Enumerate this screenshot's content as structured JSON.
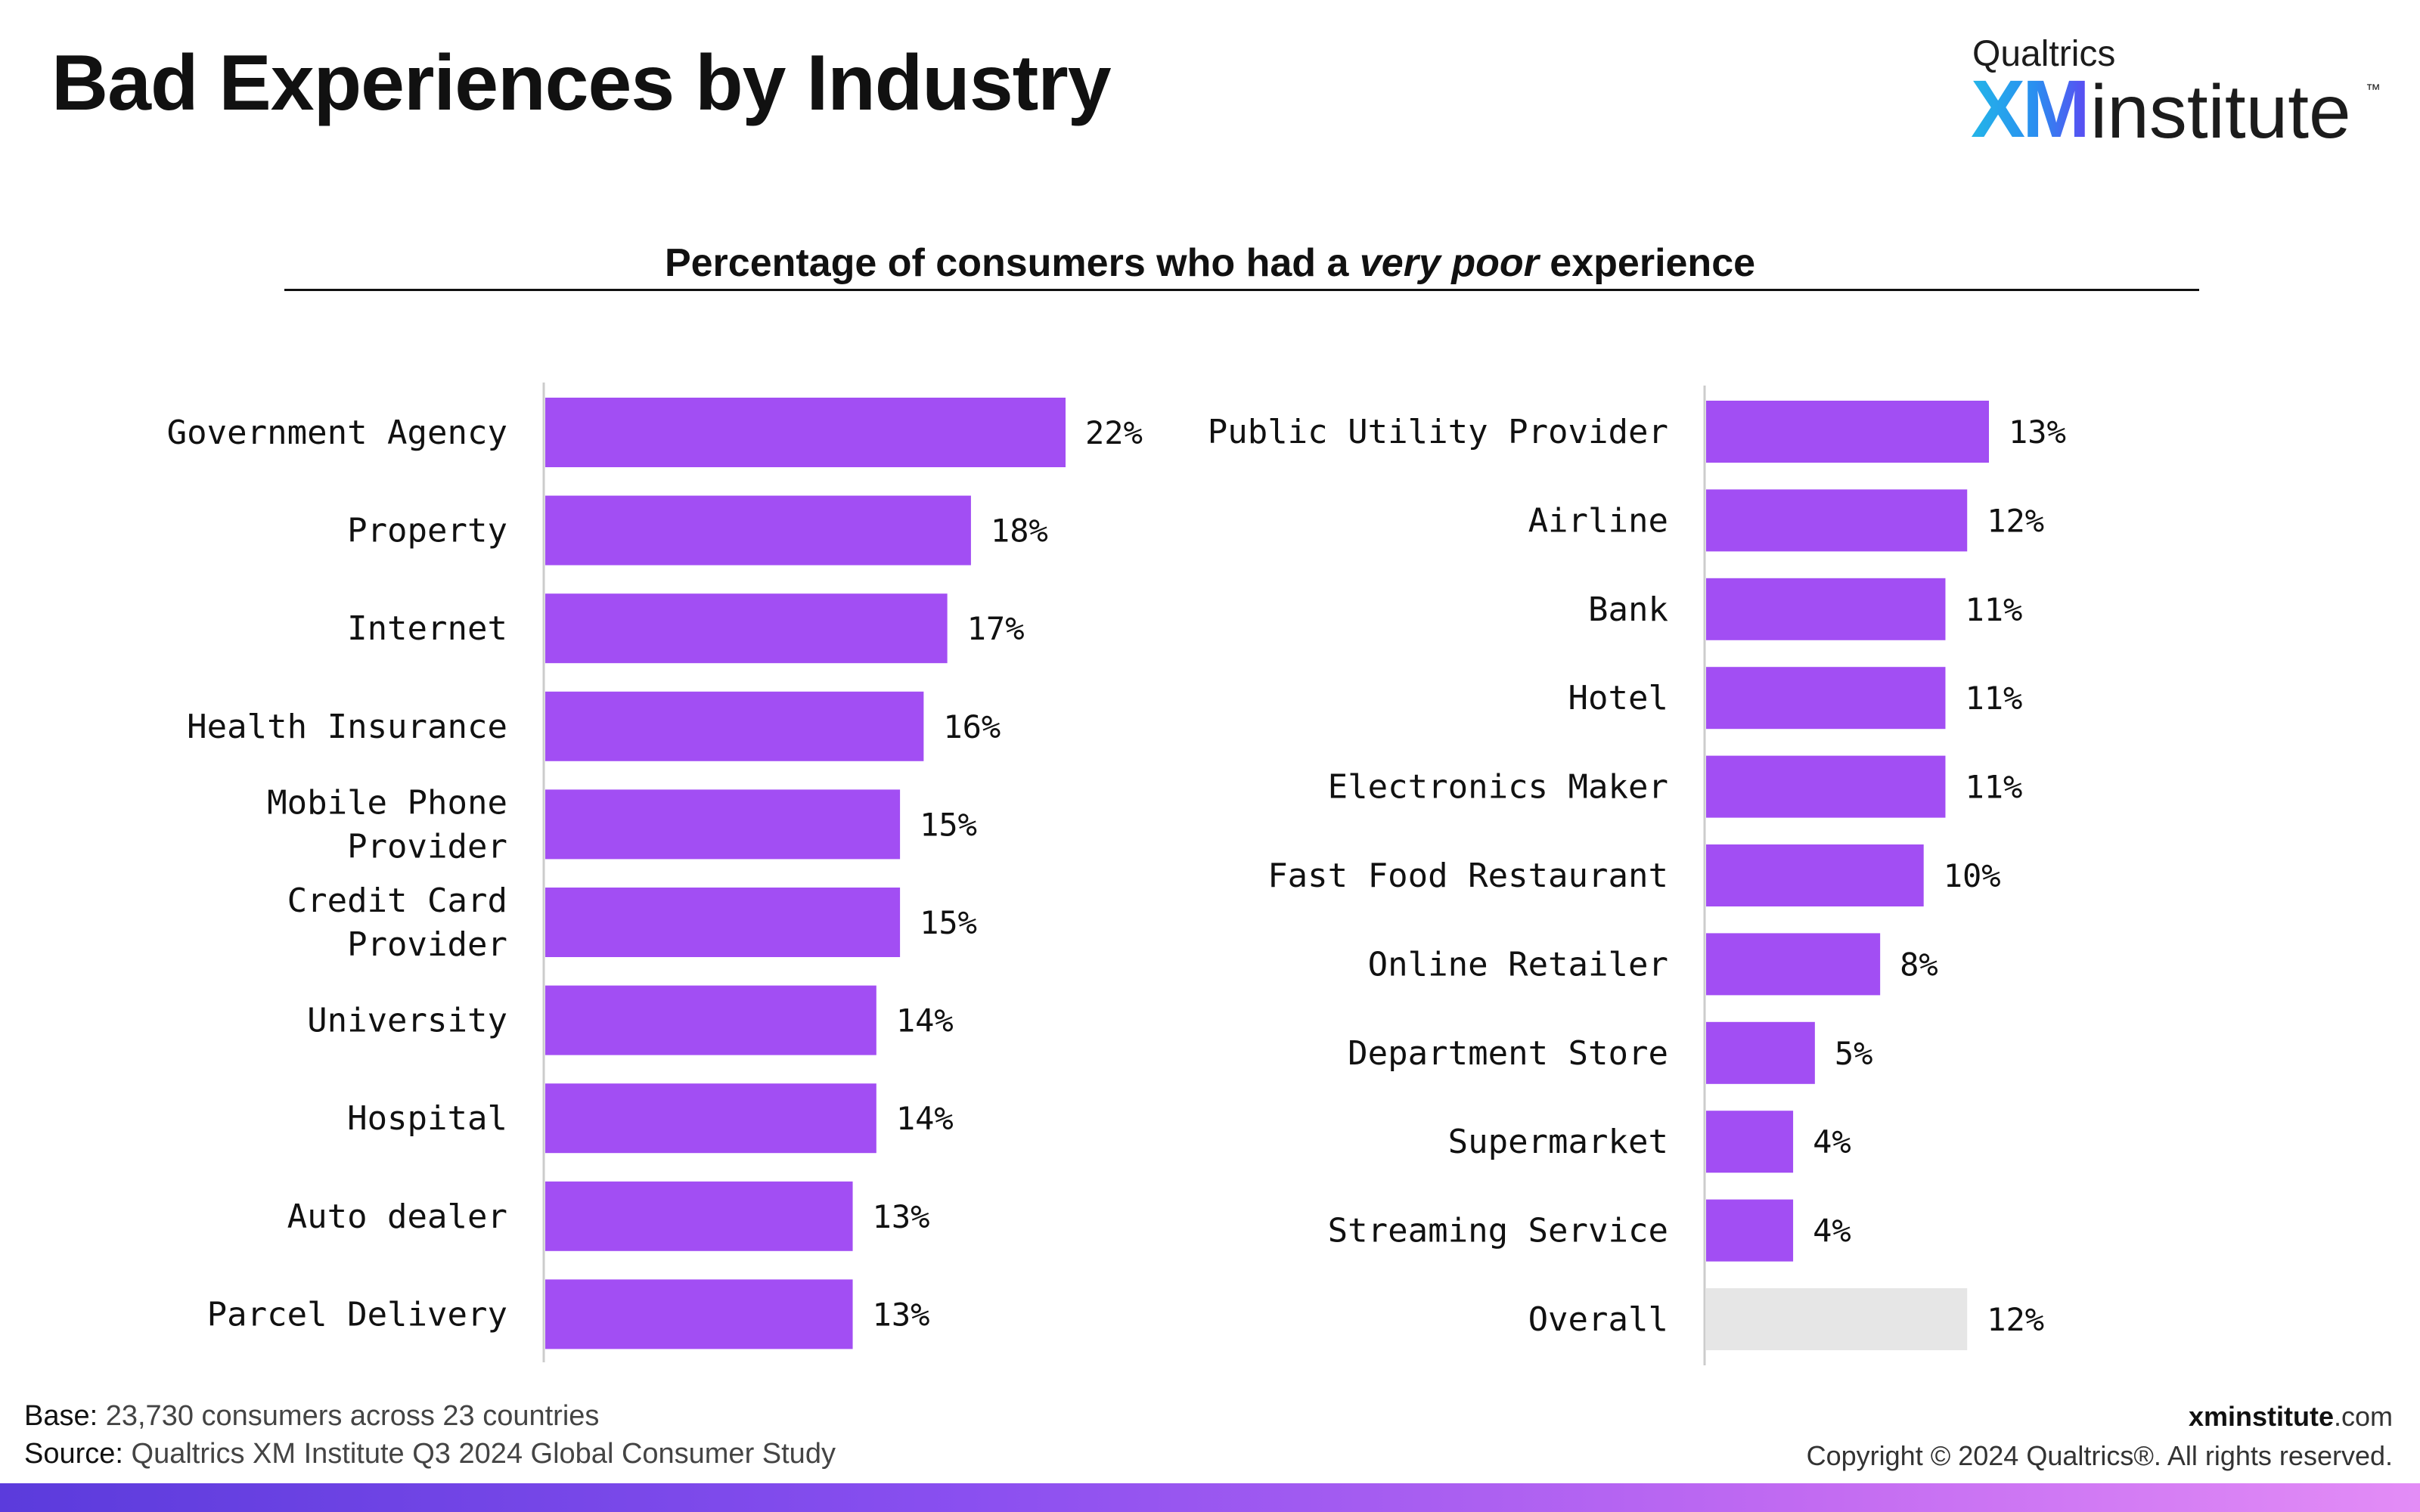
{
  "header": {
    "title": "Bad Experiences by Industry",
    "logo_top": "Qualtrics",
    "logo_xm": "XM",
    "logo_word": "institute",
    "logo_tm": "™"
  },
  "subtitle": {
    "prefix": "Percentage of consumers who had a ",
    "emphasis": "very poor",
    "suffix": " experience"
  },
  "colors": {
    "bar": "#a24ef3",
    "overall_bar": "#e6e6e6",
    "axis": "#cccccc",
    "text": "#111111"
  },
  "chart_data": [
    {
      "type": "bar",
      "orientation": "horizontal",
      "categories": [
        [
          "Government Agency"
        ],
        [
          "Property"
        ],
        [
          "Internet"
        ],
        [
          "Health Insurance"
        ],
        [
          "Mobile Phone",
          "Provider"
        ],
        [
          "Credit Card",
          "Provider"
        ],
        [
          "University"
        ],
        [
          "Hospital"
        ],
        [
          "Auto dealer"
        ],
        [
          "Parcel Delivery"
        ]
      ],
      "values": [
        22,
        18,
        17,
        16,
        15,
        15,
        14,
        14,
        13,
        13
      ],
      "value_labels": [
        "22%",
        "18%",
        "17%",
        "16%",
        "15%",
        "15%",
        "14%",
        "14%",
        "13%",
        "13%"
      ],
      "unit": "%",
      "xlim": [
        0,
        22
      ]
    },
    {
      "type": "bar",
      "orientation": "horizontal",
      "categories": [
        [
          "Public Utility Provider"
        ],
        [
          "Airline"
        ],
        [
          "Bank"
        ],
        [
          "Hotel"
        ],
        [
          "Electronics Maker"
        ],
        [
          "Fast Food Restaurant"
        ],
        [
          "Online Retailer"
        ],
        [
          "Department Store"
        ],
        [
          "Supermarket"
        ],
        [
          "Streaming Service"
        ],
        [
          "Overall"
        ]
      ],
      "values": [
        13,
        12,
        11,
        11,
        11,
        10,
        8,
        5,
        4,
        4,
        12
      ],
      "value_labels": [
        "13%",
        "12%",
        "11%",
        "11%",
        "11%",
        "10%",
        "8%",
        "5%",
        "4%",
        "4%",
        "12%"
      ],
      "highlight_last": true,
      "unit": "%",
      "xlim": [
        0,
        13
      ]
    }
  ],
  "footer": {
    "base_label": "Base:",
    "base_text": " 23,730 consumers across 23 countries",
    "source_label": "Source:",
    "source_text": " Qualtrics XM Institute Q3 2024 Global Consumer Study",
    "site_bold": "xminstitute",
    "site_light": ".com",
    "copyright": "Copyright © 2024 Qualtrics®. All rights reserved."
  }
}
